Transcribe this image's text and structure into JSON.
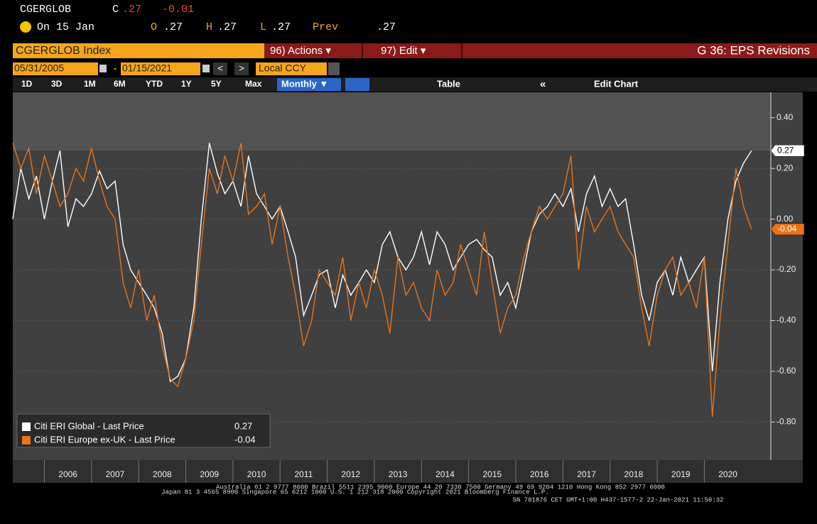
{
  "header": {
    "ticker": "CGERGLOB",
    "change_label": "C",
    "last": ".27",
    "change": "-0.01",
    "date": "On 15 Jan",
    "open_label": "O",
    "open": ".27",
    "high_label": "H",
    "high": ".27",
    "low_label": "L",
    "low": ".27",
    "prev_label": "Prev",
    "prev": ".27"
  },
  "toolbar": {
    "security": "CGERGLOB Index",
    "actions": "96) Actions ▾",
    "edit": "97) Edit ▾",
    "function": "G 36: EPS Revisions",
    "start_date": "05/31/2005",
    "date_separator": "-",
    "end_date": "01/15/2021",
    "back": "<",
    "forward": ">",
    "currency": "Local CCY",
    "periods": [
      "1D",
      "3D",
      "1M",
      "6M",
      "YTD",
      "1Y",
      "5Y",
      "Max"
    ],
    "frequency": "Monthly ▼",
    "table": "Table",
    "collapse": "«",
    "edit_chart": "Edit Chart"
  },
  "chart_data": {
    "type": "line",
    "x": [
      2005.33,
      2005.5,
      2005.67,
      2005.83,
      2006,
      2006.17,
      2006.33,
      2006.5,
      2006.67,
      2006.83,
      2007,
      2007.17,
      2007.33,
      2007.5,
      2007.67,
      2007.83,
      2008,
      2008.17,
      2008.33,
      2008.5,
      2008.67,
      2008.83,
      2009,
      2009.17,
      2009.33,
      2009.5,
      2009.67,
      2009.83,
      2010,
      2010.17,
      2010.33,
      2010.5,
      2010.67,
      2010.83,
      2011,
      2011.17,
      2011.33,
      2011.5,
      2011.67,
      2011.83,
      2012,
      2012.17,
      2012.33,
      2012.5,
      2012.67,
      2012.83,
      2013,
      2013.17,
      2013.33,
      2013.5,
      2013.67,
      2013.83,
      2014,
      2014.17,
      2014.33,
      2014.5,
      2014.67,
      2014.83,
      2015,
      2015.17,
      2015.33,
      2015.5,
      2015.67,
      2015.83,
      2016,
      2016.17,
      2016.33,
      2016.5,
      2016.67,
      2016.83,
      2017,
      2017.17,
      2017.33,
      2017.5,
      2017.67,
      2017.83,
      2018,
      2018.17,
      2018.33,
      2018.5,
      2018.67,
      2018.83,
      2019,
      2019.17,
      2019.33,
      2019.5,
      2019.67,
      2019.83,
      2020,
      2020.17,
      2020.33,
      2020.5,
      2020.67,
      2020.83,
      2021
    ],
    "series": [
      {
        "name": "Citi ERI Global - Last Price",
        "color": "#ffffff",
        "values": [
          0.0,
          0.2,
          0.08,
          0.17,
          0.0,
          0.15,
          0.27,
          -0.03,
          0.08,
          0.05,
          0.1,
          0.19,
          0.12,
          0.15,
          -0.1,
          -0.2,
          -0.25,
          -0.3,
          -0.35,
          -0.45,
          -0.64,
          -0.62,
          -0.55,
          -0.35,
          0.0,
          0.3,
          0.18,
          0.1,
          0.15,
          0.05,
          0.25,
          0.1,
          0.05,
          0.0,
          0.05,
          -0.05,
          -0.15,
          -0.38,
          -0.3,
          -0.22,
          -0.2,
          -0.35,
          -0.22,
          -0.3,
          -0.25,
          -0.2,
          -0.25,
          -0.1,
          -0.05,
          -0.15,
          -0.2,
          -0.15,
          -0.05,
          -0.18,
          -0.05,
          -0.1,
          -0.2,
          -0.15,
          -0.1,
          -0.08,
          -0.12,
          -0.15,
          -0.3,
          -0.25,
          -0.35,
          -0.2,
          -0.05,
          0.02,
          0.05,
          0.1,
          0.05,
          0.12,
          -0.05,
          0.1,
          0.17,
          0.05,
          0.12,
          0.05,
          0.08,
          -0.1,
          -0.3,
          -0.4,
          -0.25,
          -0.2,
          -0.3,
          -0.15,
          -0.25,
          -0.2,
          -0.15,
          -0.6,
          -0.25,
          0.0,
          0.15,
          0.22,
          0.27
        ]
      },
      {
        "name": "Citi ERI Europe ex-UK - Last Price",
        "color": "#e8731a",
        "values": [
          0.3,
          0.2,
          0.28,
          0.1,
          0.25,
          0.15,
          0.05,
          0.1,
          0.2,
          0.15,
          0.28,
          0.15,
          0.05,
          0.0,
          -0.25,
          -0.35,
          -0.2,
          -0.4,
          -0.3,
          -0.5,
          -0.63,
          -0.66,
          -0.55,
          -0.4,
          -0.1,
          0.2,
          0.1,
          0.25,
          0.15,
          0.3,
          0.02,
          0.05,
          0.1,
          -0.1,
          0.05,
          -0.15,
          -0.3,
          -0.5,
          -0.4,
          -0.2,
          -0.25,
          -0.3,
          -0.15,
          -0.4,
          -0.25,
          -0.35,
          -0.2,
          -0.3,
          -0.45,
          -0.15,
          -0.3,
          -0.25,
          -0.35,
          -0.4,
          -0.2,
          -0.3,
          -0.25,
          -0.1,
          -0.2,
          -0.3,
          -0.05,
          -0.25,
          -0.45,
          -0.35,
          -0.3,
          -0.15,
          -0.05,
          0.05,
          0.0,
          0.05,
          0.1,
          0.25,
          -0.2,
          0.05,
          -0.05,
          0.0,
          0.05,
          -0.05,
          -0.1,
          -0.15,
          -0.35,
          -0.5,
          -0.3,
          -0.2,
          -0.15,
          -0.3,
          -0.25,
          -0.35,
          -0.15,
          -0.78,
          -0.4,
          -0.1,
          0.2,
          0.05,
          -0.04
        ]
      }
    ],
    "xlim": [
      2005.33,
      2021.41
    ],
    "xticks": [
      2006,
      2007,
      2008,
      2009,
      2010,
      2011,
      2012,
      2013,
      2014,
      2015,
      2016,
      2017,
      2018,
      2019,
      2020
    ],
    "ylim": [
      -0.95,
      0.5
    ],
    "yticks": [
      {
        "value": 0.4,
        "label": "0.40"
      },
      {
        "value": 0.2,
        "label": "0.20"
      },
      {
        "value": 0,
        "label": "0.00"
      },
      {
        "value": -0.2,
        "label": "-0.20"
      },
      {
        "value": -0.4,
        "label": "-0.40"
      },
      {
        "value": -0.6,
        "label": "-0.60"
      },
      {
        "value": -0.8,
        "label": "-0.80"
      }
    ],
    "grid": true,
    "legend": "lower left"
  },
  "footer": [
    "Australia 61 2 9777 8600 Brazil 5511 2395 9000 Europe 44 20 7330 7500 Germany 49 69 9204 1210 Hong Kong 852 2977 6000",
    "Japan 81 3 4565 8900      Singapore 65 6212 1000      U.S. 1 212 318 2000           Copyright 2021 Bloomberg Finance L.P.",
    "SN 701876 CET  GMT+1:00 H437-1577-2 22-Jan-2021 11:50:32"
  ]
}
